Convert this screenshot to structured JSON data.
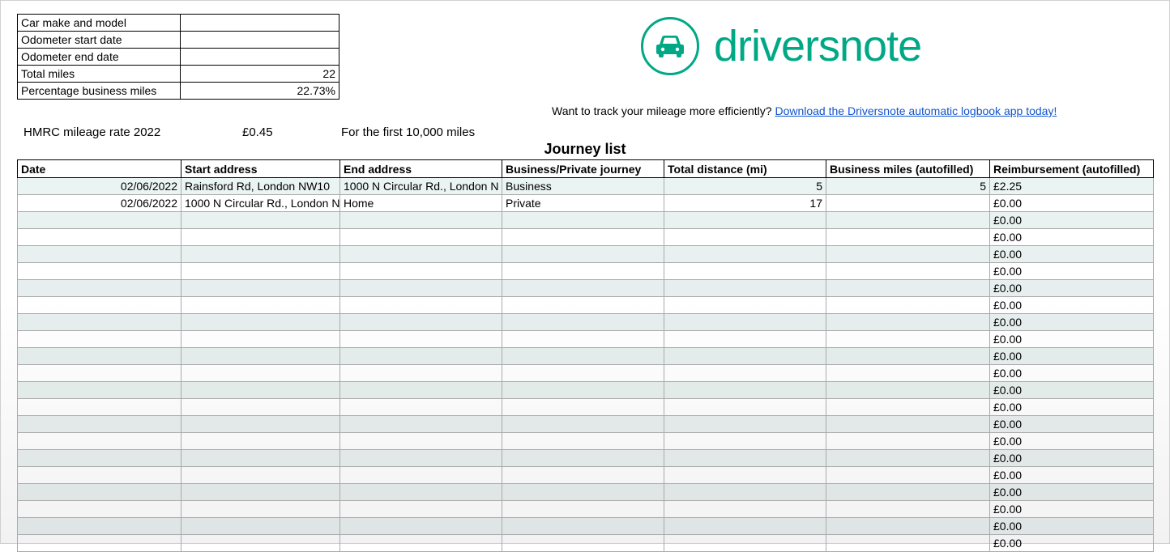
{
  "colors": {
    "brand": "#00a885",
    "link": "#1155cc",
    "rowAltLight": "#eaf4f2",
    "rowAltDark": "#e2e8e8",
    "border": "#000000",
    "cellBorder": "#aaaaaa"
  },
  "summary": {
    "rows": [
      {
        "label": "Car make and model",
        "value": ""
      },
      {
        "label": "Odometer start date",
        "value": ""
      },
      {
        "label": "Odometer end date",
        "value": ""
      },
      {
        "label": "Total miles",
        "value": "22"
      },
      {
        "label": "Percentage business miles",
        "value": "22.73%"
      }
    ]
  },
  "rate": {
    "label": "HMRC mileage rate 2022",
    "value": "£0.45",
    "note": "For the first 10,000 miles"
  },
  "logo": {
    "text": "driversnote"
  },
  "promo": {
    "prefix": "Want to track your mileage more efficiently? ",
    "linkText": "Download the Driversnote automatic logbook app today!"
  },
  "journey": {
    "title": "Journey list",
    "columns": [
      "Date",
      "Start address",
      "End address",
      "Business/Private journey",
      "Total distance (mi)",
      "Business miles (autofilled)",
      "Reimbursement (autofilled)"
    ],
    "rows": [
      {
        "date": "02/06/2022",
        "start": "Rainsford Rd, London NW10",
        "end": "1000 N Circular Rd., London N",
        "bp": "Business",
        "dist": "5",
        "biz": "5",
        "reimb": "£2.25"
      },
      {
        "date": "02/06/2022",
        "start": "1000 N Circular Rd., London N",
        "end": "Home",
        "bp": "Private",
        "dist": "17",
        "biz": "",
        "reimb": "£0.00"
      },
      {
        "date": "",
        "start": "",
        "end": "",
        "bp": "",
        "dist": "",
        "biz": "",
        "reimb": "£0.00"
      },
      {
        "date": "",
        "start": "",
        "end": "",
        "bp": "",
        "dist": "",
        "biz": "",
        "reimb": "£0.00"
      },
      {
        "date": "",
        "start": "",
        "end": "",
        "bp": "",
        "dist": "",
        "biz": "",
        "reimb": "£0.00"
      },
      {
        "date": "",
        "start": "",
        "end": "",
        "bp": "",
        "dist": "",
        "biz": "",
        "reimb": "£0.00"
      },
      {
        "date": "",
        "start": "",
        "end": "",
        "bp": "",
        "dist": "",
        "biz": "",
        "reimb": "£0.00"
      },
      {
        "date": "",
        "start": "",
        "end": "",
        "bp": "",
        "dist": "",
        "biz": "",
        "reimb": "£0.00"
      },
      {
        "date": "",
        "start": "",
        "end": "",
        "bp": "",
        "dist": "",
        "biz": "",
        "reimb": "£0.00"
      },
      {
        "date": "",
        "start": "",
        "end": "",
        "bp": "",
        "dist": "",
        "biz": "",
        "reimb": "£0.00"
      },
      {
        "date": "",
        "start": "",
        "end": "",
        "bp": "",
        "dist": "",
        "biz": "",
        "reimb": "£0.00"
      },
      {
        "date": "",
        "start": "",
        "end": "",
        "bp": "",
        "dist": "",
        "biz": "",
        "reimb": "£0.00"
      },
      {
        "date": "",
        "start": "",
        "end": "",
        "bp": "",
        "dist": "",
        "biz": "",
        "reimb": "£0.00"
      },
      {
        "date": "",
        "start": "",
        "end": "",
        "bp": "",
        "dist": "",
        "biz": "",
        "reimb": "£0.00"
      },
      {
        "date": "",
        "start": "",
        "end": "",
        "bp": "",
        "dist": "",
        "biz": "",
        "reimb": "£0.00"
      },
      {
        "date": "",
        "start": "",
        "end": "",
        "bp": "",
        "dist": "",
        "biz": "",
        "reimb": "£0.00"
      },
      {
        "date": "",
        "start": "",
        "end": "",
        "bp": "",
        "dist": "",
        "biz": "",
        "reimb": "£0.00"
      },
      {
        "date": "",
        "start": "",
        "end": "",
        "bp": "",
        "dist": "",
        "biz": "",
        "reimb": "£0.00"
      },
      {
        "date": "",
        "start": "",
        "end": "",
        "bp": "",
        "dist": "",
        "biz": "",
        "reimb": "£0.00"
      },
      {
        "date": "",
        "start": "",
        "end": "",
        "bp": "",
        "dist": "",
        "biz": "",
        "reimb": "£0.00"
      },
      {
        "date": "",
        "start": "",
        "end": "",
        "bp": "",
        "dist": "",
        "biz": "",
        "reimb": "£0.00"
      },
      {
        "date": "",
        "start": "",
        "end": "",
        "bp": "",
        "dist": "",
        "biz": "",
        "reimb": "£0.00"
      }
    ]
  }
}
